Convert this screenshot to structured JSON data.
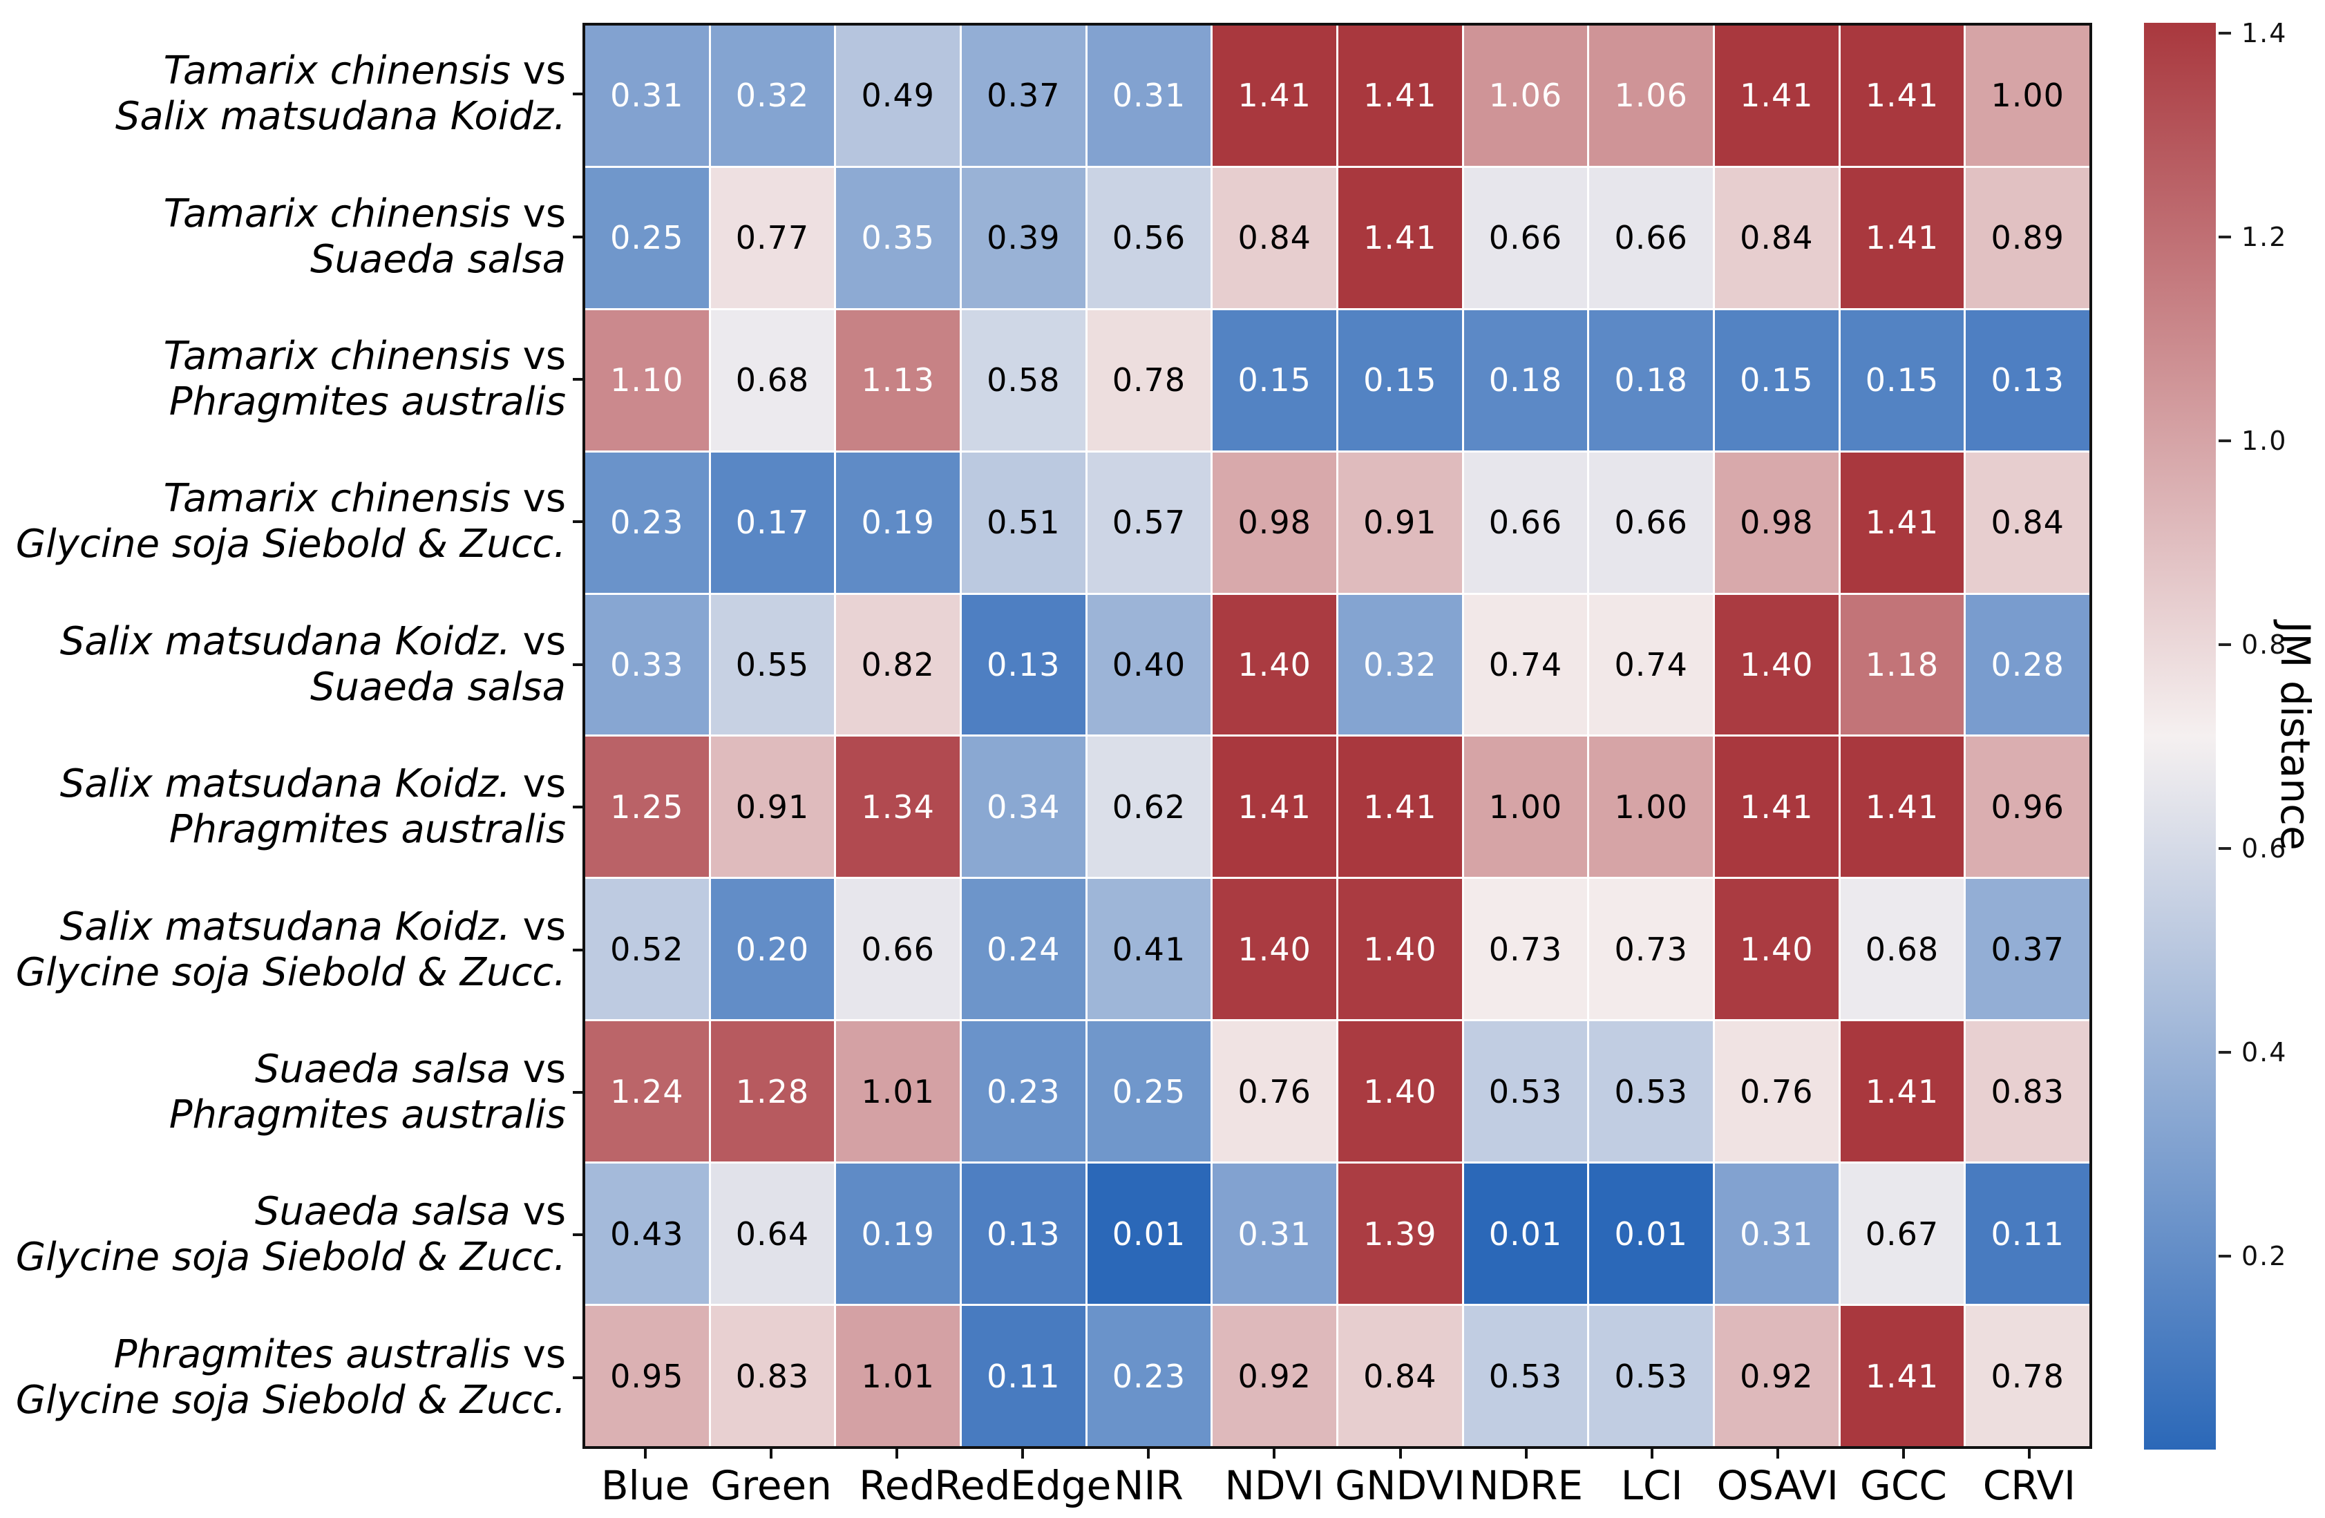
{
  "chart_data": {
    "type": "heatmap",
    "colorbar_label": "JM distance",
    "columns": [
      "Blue",
      "Green",
      "Red",
      "RedEdge",
      "NIR",
      "NDVI",
      "GNDVI",
      "NDRE",
      "LCI",
      "OSAVI",
      "GCC",
      "CRVI"
    ],
    "row_separator": "vs",
    "rows": [
      {
        "a": "Tamarix chinensis",
        "b": "Salix matsudana Koidz."
      },
      {
        "a": "Tamarix chinensis",
        "b": "Suaeda salsa"
      },
      {
        "a": "Tamarix chinensis",
        "b": "Phragmites australis"
      },
      {
        "a": "Tamarix chinensis",
        "b": "Glycine soja Siebold & Zucc."
      },
      {
        "a": "Salix matsudana Koidz.",
        "b": "Suaeda salsa"
      },
      {
        "a": "Salix matsudana Koidz.",
        "b": "Phragmites australis"
      },
      {
        "a": "Salix matsudana Koidz.",
        "b": "Glycine soja Siebold & Zucc."
      },
      {
        "a": "Suaeda salsa",
        "b": "Phragmites australis"
      },
      {
        "a": "Suaeda salsa",
        "b": "Glycine soja Siebold & Zucc."
      },
      {
        "a": "Phragmites australis",
        "b": "Glycine soja Siebold & Zucc."
      }
    ],
    "values": [
      [
        0.31,
        0.32,
        0.49,
        0.37,
        0.31,
        1.41,
        1.41,
        1.06,
        1.06,
        1.41,
        1.41,
        1.0
      ],
      [
        0.25,
        0.77,
        0.35,
        0.39,
        0.56,
        0.84,
        1.41,
        0.66,
        0.66,
        0.84,
        1.41,
        0.89
      ],
      [
        1.1,
        0.68,
        1.13,
        0.58,
        0.78,
        0.15,
        0.15,
        0.18,
        0.18,
        0.15,
        0.15,
        0.13
      ],
      [
        0.23,
        0.17,
        0.19,
        0.51,
        0.57,
        0.98,
        0.91,
        0.66,
        0.66,
        0.98,
        1.41,
        0.84
      ],
      [
        0.33,
        0.55,
        0.82,
        0.13,
        0.4,
        1.4,
        0.32,
        0.74,
        0.74,
        1.4,
        1.18,
        0.28
      ],
      [
        1.25,
        0.91,
        1.34,
        0.34,
        0.62,
        1.41,
        1.41,
        1.0,
        1.0,
        1.41,
        1.41,
        0.96
      ],
      [
        0.52,
        0.2,
        0.66,
        0.24,
        0.41,
        1.4,
        1.4,
        0.73,
        0.73,
        1.4,
        0.68,
        0.37
      ],
      [
        1.24,
        1.28,
        1.01,
        0.23,
        0.25,
        0.76,
        1.4,
        0.53,
        0.53,
        0.76,
        1.41,
        0.83
      ],
      [
        0.43,
        0.64,
        0.19,
        0.13,
        0.01,
        0.31,
        1.39,
        0.01,
        0.01,
        0.31,
        0.67,
        0.11
      ],
      [
        0.95,
        0.83,
        1.01,
        0.11,
        0.23,
        0.92,
        0.84,
        0.53,
        0.53,
        0.92,
        1.41,
        0.78
      ]
    ],
    "vmin": 0.01,
    "vmax": 1.41,
    "colorbar_ticks": [
      "1.4",
      "1.2",
      "1.0",
      "0.8",
      "0.6",
      "0.4",
      "0.2"
    ],
    "legend_position": "right",
    "grid": false,
    "colors": {
      "low": "#2b68b8",
      "mid": "#f5f0f0",
      "high": "#a9383e",
      "mid_value": 0.71,
      "text_white_low": 0.35,
      "text_white_high": 1.06,
      "cell_text_dark": "#000000",
      "cell_text_light": "#ffffff",
      "frame": "#111111",
      "background": "#ffffff"
    }
  }
}
